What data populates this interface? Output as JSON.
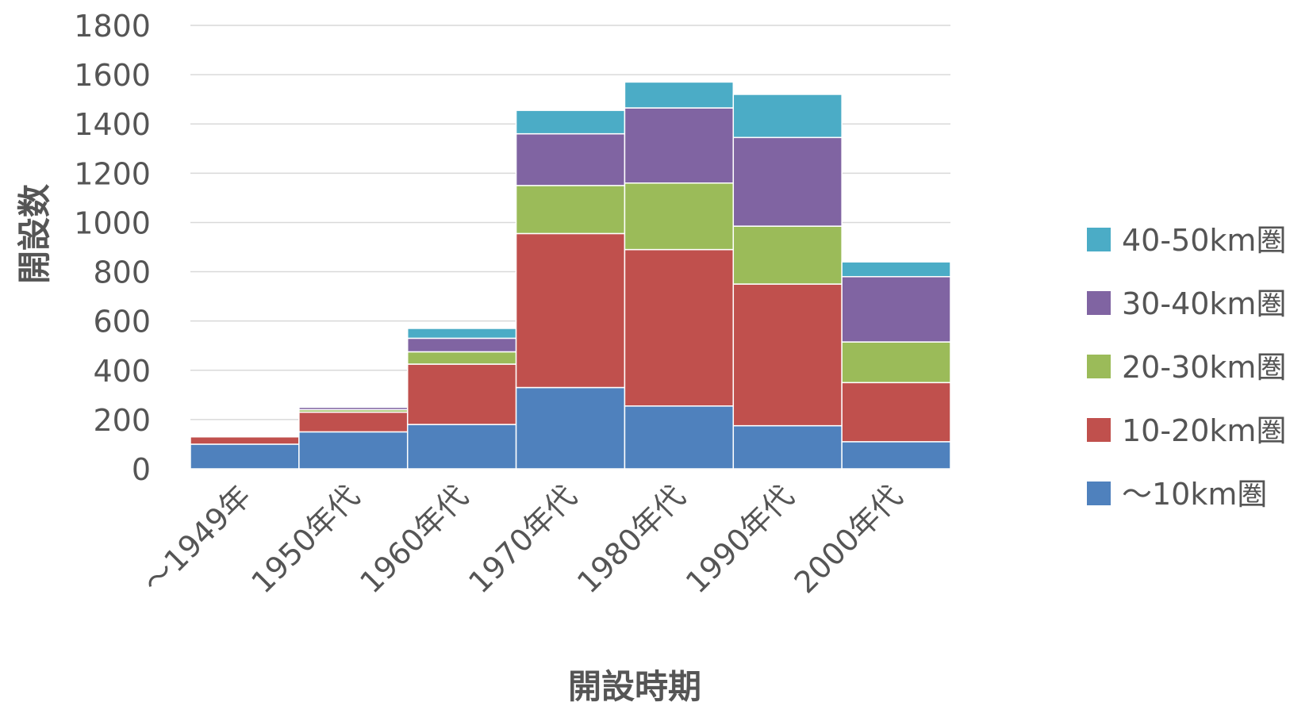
{
  "chart_data": {
    "type": "bar",
    "stacked": true,
    "categories": [
      "～1949年",
      "1950年代",
      "1960年代",
      "1970年代",
      "1980年代",
      "1990年代",
      "2000年代"
    ],
    "series": [
      {
        "name": "～10km圏",
        "color": "#4F81BD",
        "values": [
          100,
          150,
          180,
          330,
          255,
          175,
          110
        ]
      },
      {
        "name": "10-20km圏",
        "color": "#C0504D",
        "values": [
          30,
          80,
          245,
          625,
          635,
          575,
          240
        ]
      },
      {
        "name": "20-30km圏",
        "color": "#9BBB59",
        "values": [
          2,
          10,
          50,
          195,
          270,
          235,
          165
        ]
      },
      {
        "name": "30-40km圏",
        "color": "#8064A2",
        "values": [
          2,
          10,
          55,
          210,
          305,
          360,
          265
        ]
      },
      {
        "name": "40-50km圏",
        "color": "#4BACC6",
        "values": [
          1,
          5,
          40,
          95,
          105,
          175,
          60
        ]
      }
    ],
    "xlabel": "開設時期",
    "ylabel": "開設数",
    "ylim": [
      0,
      1800
    ],
    "yticks": [
      0,
      200,
      400,
      600,
      800,
      1000,
      1200,
      1400,
      1600,
      1800
    ],
    "grid": true,
    "legend": "right"
  }
}
